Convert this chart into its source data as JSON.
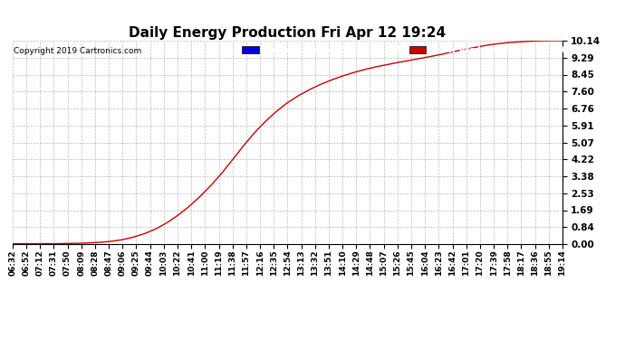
{
  "title": "Daily Energy Production Fri Apr 12 19:24",
  "copyright": "Copyright 2019 Cartronics.com",
  "yticks": [
    0.0,
    0.84,
    1.69,
    2.53,
    3.38,
    4.22,
    5.07,
    5.91,
    6.76,
    7.6,
    8.45,
    9.29,
    10.14
  ],
  "ymax": 10.14,
  "ymin": 0.0,
  "legend_offpeak_color": "#0000dd",
  "legend_onpeak_color": "#cc0000",
  "line_color": "#cc0000",
  "background_color": "#ffffff",
  "grid_color": "#bbbbbb",
  "xtick_labels": [
    "06:32",
    "06:52",
    "07:12",
    "07:31",
    "07:50",
    "08:09",
    "08:28",
    "08:47",
    "09:06",
    "09:25",
    "09:44",
    "10:03",
    "10:22",
    "10:41",
    "11:00",
    "11:19",
    "11:38",
    "11:57",
    "12:16",
    "12:35",
    "12:54",
    "13:13",
    "13:32",
    "13:51",
    "14:10",
    "14:29",
    "14:48",
    "15:07",
    "15:26",
    "15:45",
    "16:04",
    "16:23",
    "16:42",
    "17:01",
    "17:20",
    "17:39",
    "17:58",
    "18:17",
    "18:36",
    "18:55",
    "19:14"
  ],
  "curve_y": [
    0.02,
    0.02,
    0.02,
    0.02,
    0.02,
    0.03,
    0.04,
    0.06,
    0.09,
    0.14,
    0.22,
    0.35,
    0.52,
    0.75,
    1.05,
    1.42,
    1.85,
    2.35,
    2.9,
    3.52,
    4.2,
    4.9,
    5.55,
    6.12,
    6.62,
    7.05,
    7.4,
    7.7,
    7.96,
    8.18,
    8.38,
    8.55,
    8.7,
    8.83,
    8.94,
    9.05,
    9.15,
    9.25,
    9.35,
    9.46,
    9.58,
    9.7,
    9.8,
    9.9,
    9.98,
    10.04,
    10.08,
    10.11,
    10.13,
    10.14,
    10.14
  ]
}
